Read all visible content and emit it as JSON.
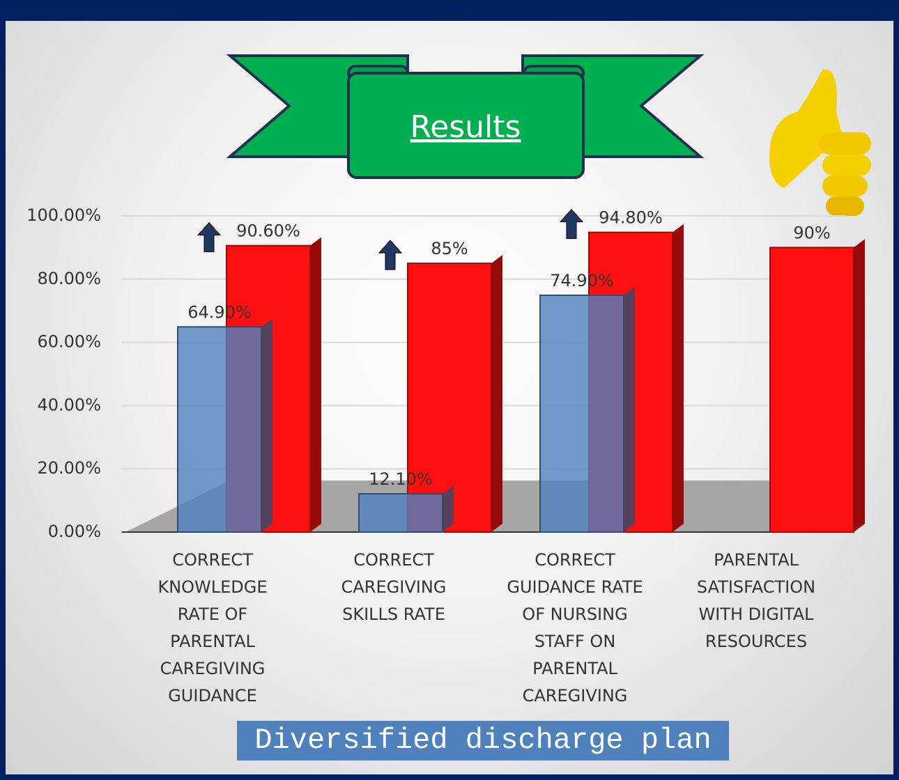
{
  "chart_data": {
    "type": "bar",
    "title": "Results",
    "caption": "Diversified discharge plan",
    "categories": [
      "CORRECT KNOWLEDGE RATE OF PARENTAL CAREGIVING GUIDANCE",
      "CORRECT CAREGIVING SKILLS RATE",
      "CORRECT GUIDANCE RATE OF NURSING STAFF ON PARENTAL CAREGIVING",
      "PARENTAL SATISFACTION WITH DIGITAL RESOURCES"
    ],
    "series": [
      {
        "color": "#4f81bd",
        "values": [
          64.9,
          12.1,
          74.9,
          null
        ],
        "value_labels": [
          "64.90%",
          "12.10%",
          "74.90%",
          null
        ]
      },
      {
        "color": "#ff1010",
        "values": [
          90.6,
          85,
          94.8,
          90
        ],
        "value_labels": [
          "90.60%",
          "85%",
          "94.80%",
          "90%"
        ]
      }
    ],
    "ylim": [
      0,
      100
    ],
    "yticks": [
      {
        "value": 0,
        "label": "0.00%"
      },
      {
        "value": 20,
        "label": "20.00%"
      },
      {
        "value": 40,
        "label": "40.00%"
      },
      {
        "value": 60,
        "label": "60.00%"
      },
      {
        "value": 80,
        "label": "80.00%"
      },
      {
        "value": 100,
        "label": "100.00%"
      }
    ],
    "grid": true
  }
}
